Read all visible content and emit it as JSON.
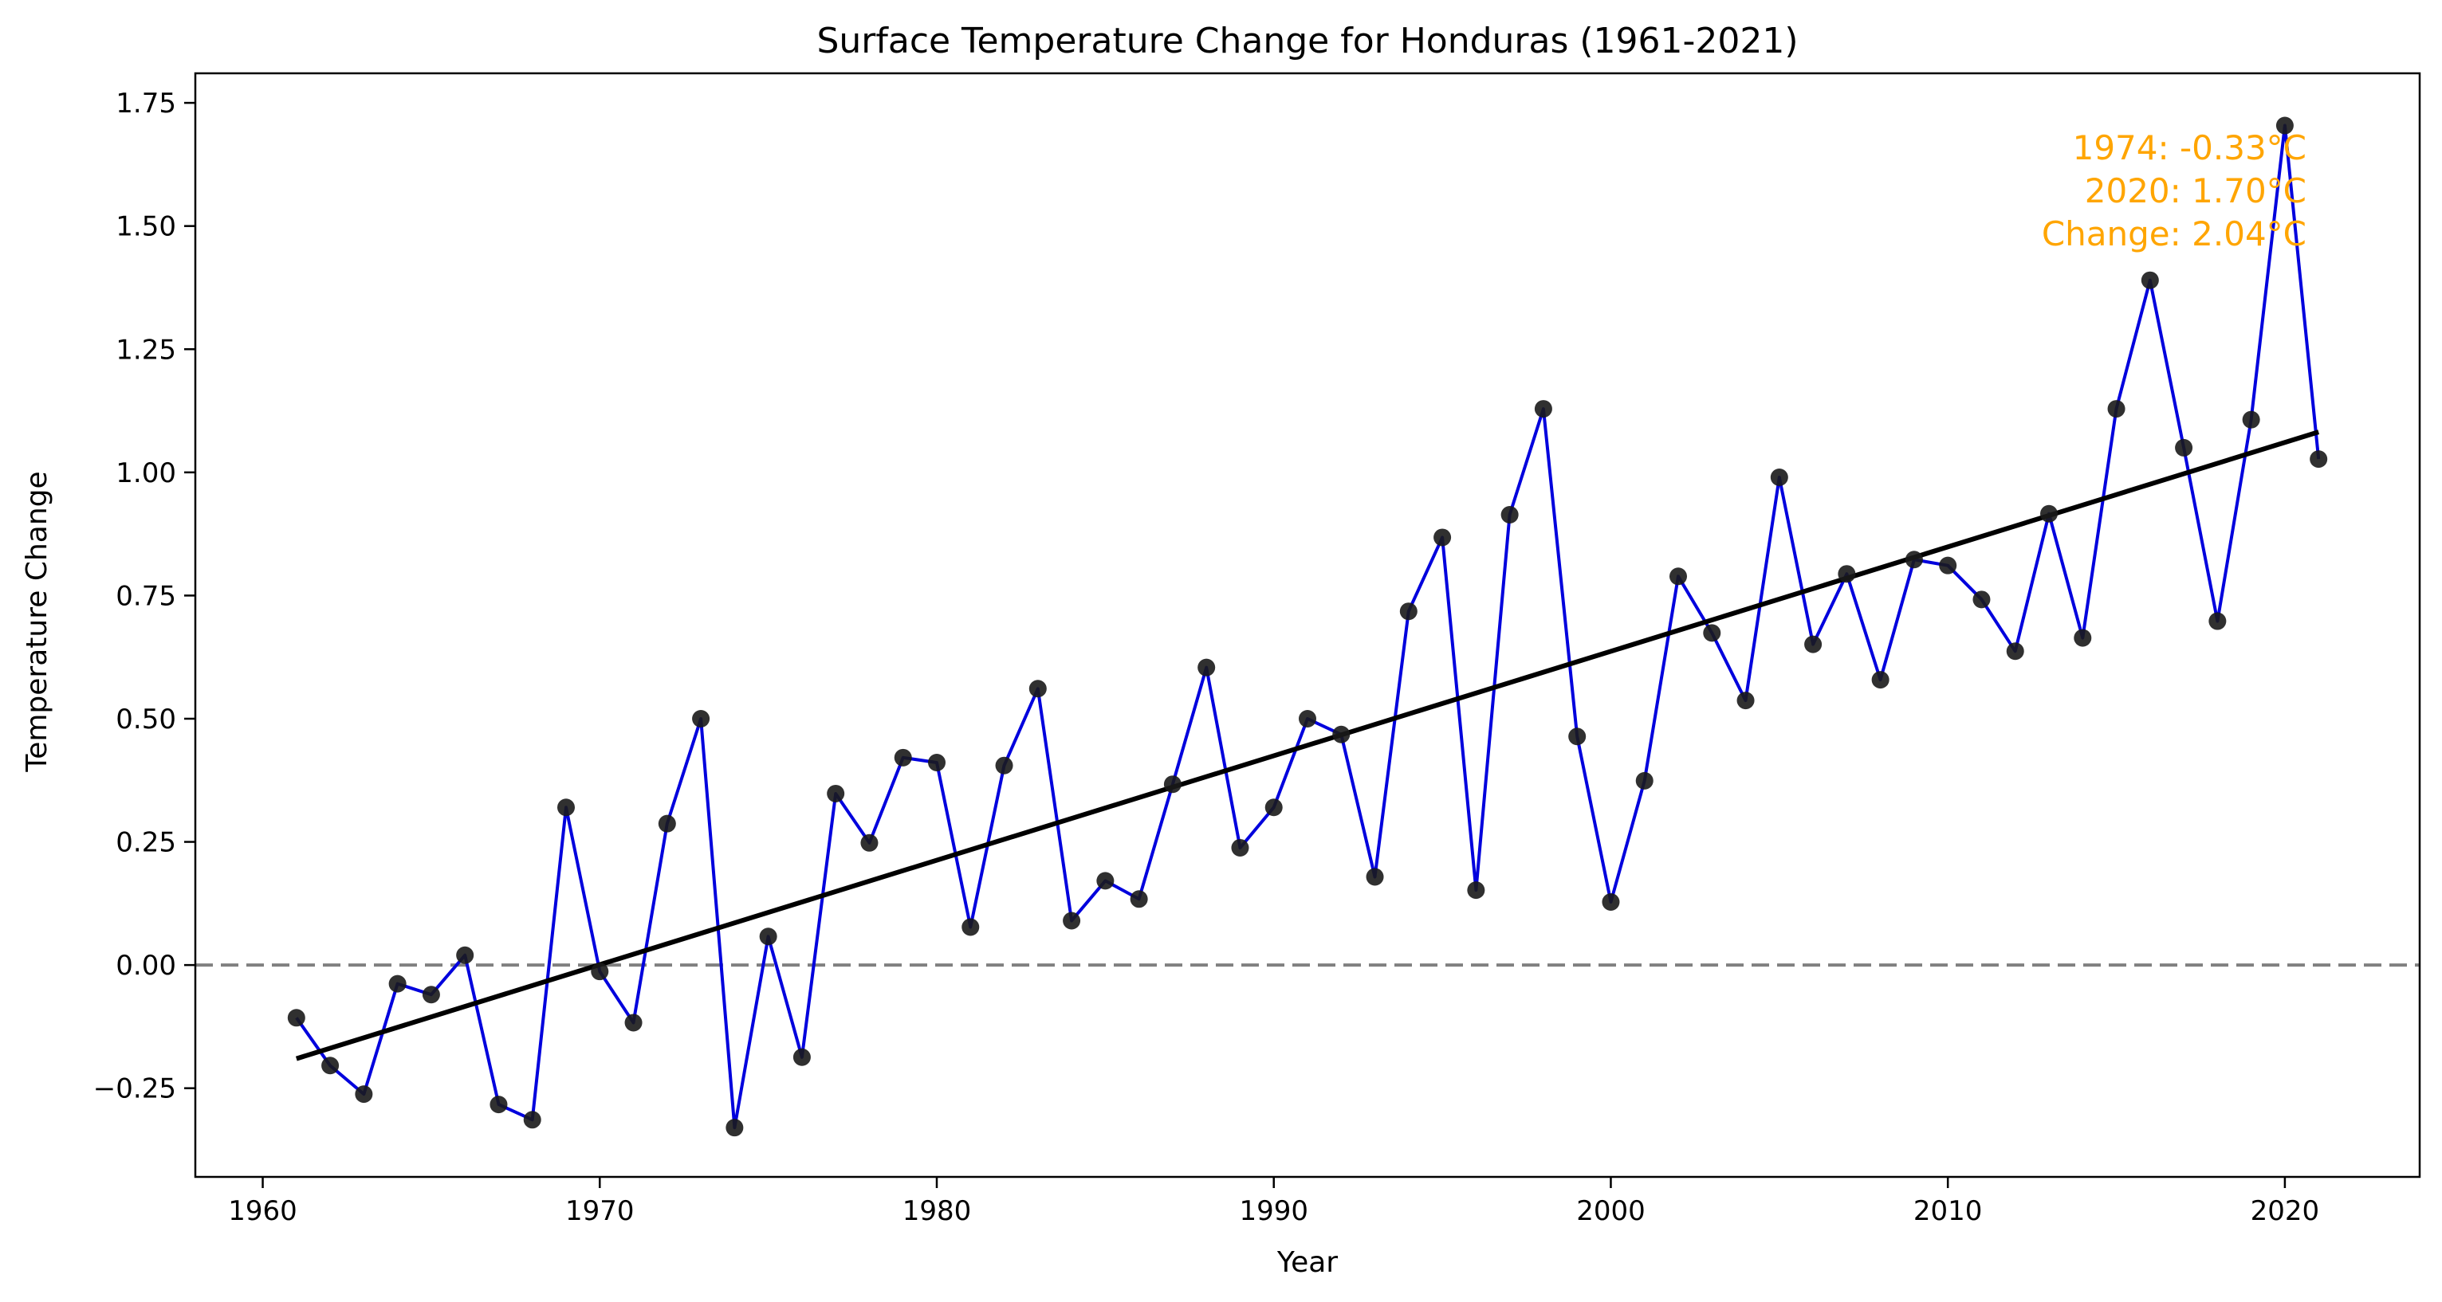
{
  "chart_data": {
    "type": "line",
    "title": "Surface Temperature Change for Honduras (1961-2021)",
    "xlabel": "Year",
    "ylabel": "Temperature Change",
    "xlim": [
      1958,
      2024
    ],
    "ylim": [
      -0.43,
      1.81
    ],
    "xticks": [
      1960,
      1970,
      1980,
      1990,
      2000,
      2010,
      2020
    ],
    "yticks": [
      -0.25,
      0.0,
      0.25,
      0.5,
      0.75,
      1.0,
      1.25,
      1.5,
      1.75
    ],
    "ytick_labels": [
      "−0.25",
      "0.00",
      "0.25",
      "0.50",
      "0.75",
      "1.00",
      "1.25",
      "1.50",
      "1.75"
    ],
    "grid": false,
    "series": [
      {
        "x": [
          1961,
          1962,
          1963,
          1964,
          1965,
          1966,
          1967,
          1968,
          1969,
          1970,
          1971,
          1972,
          1973,
          1974,
          1975,
          1976,
          1977,
          1978,
          1979,
          1980,
          1981,
          1982,
          1983,
          1984,
          1985,
          1986,
          1987,
          1988,
          1989,
          1990,
          1991,
          1992,
          1993,
          1994,
          1995,
          1996,
          1997,
          1998,
          1999,
          2000,
          2001,
          2002,
          2003,
          2004,
          2005,
          2006,
          2007,
          2008,
          2009,
          2010,
          2011,
          2012,
          2013,
          2014,
          2015,
          2016,
          2017,
          2018,
          2019,
          2020,
          2021
        ],
        "values": [
          -0.107,
          -0.204,
          -0.262,
          -0.038,
          -0.06,
          0.02,
          -0.283,
          -0.314,
          0.32,
          -0.013,
          -0.117,
          0.287,
          0.5,
          -0.33,
          0.058,
          -0.187,
          0.348,
          0.248,
          0.421,
          0.411,
          0.077,
          0.405,
          0.561,
          0.09,
          0.171,
          0.134,
          0.367,
          0.604,
          0.238,
          0.32,
          0.5,
          0.468,
          0.179,
          0.718,
          0.868,
          0.152,
          0.914,
          1.129,
          0.464,
          0.128,
          0.374,
          0.789,
          0.674,
          0.537,
          0.99,
          0.651,
          0.794,
          0.579,
          0.823,
          0.811,
          0.742,
          0.637,
          0.916,
          0.664,
          1.129,
          1.39,
          1.05,
          0.698,
          1.107,
          1.704,
          1.027
        ],
        "line_color": "#0000dd",
        "marker_color": "#1a1a1a"
      }
    ],
    "trend_line": {
      "x": [
        1961,
        2021
      ],
      "y": [
        -0.19,
        1.082
      ],
      "color": "#000000"
    },
    "reference_line": {
      "y": 0.0,
      "style": "dashed",
      "color": "#808080"
    },
    "annotation": {
      "lines": [
        "1974: -0.33°C",
        "2020: 1.70°C",
        "Change: 2.04°C"
      ],
      "color": "#ffa500",
      "placement": "top-right"
    }
  }
}
